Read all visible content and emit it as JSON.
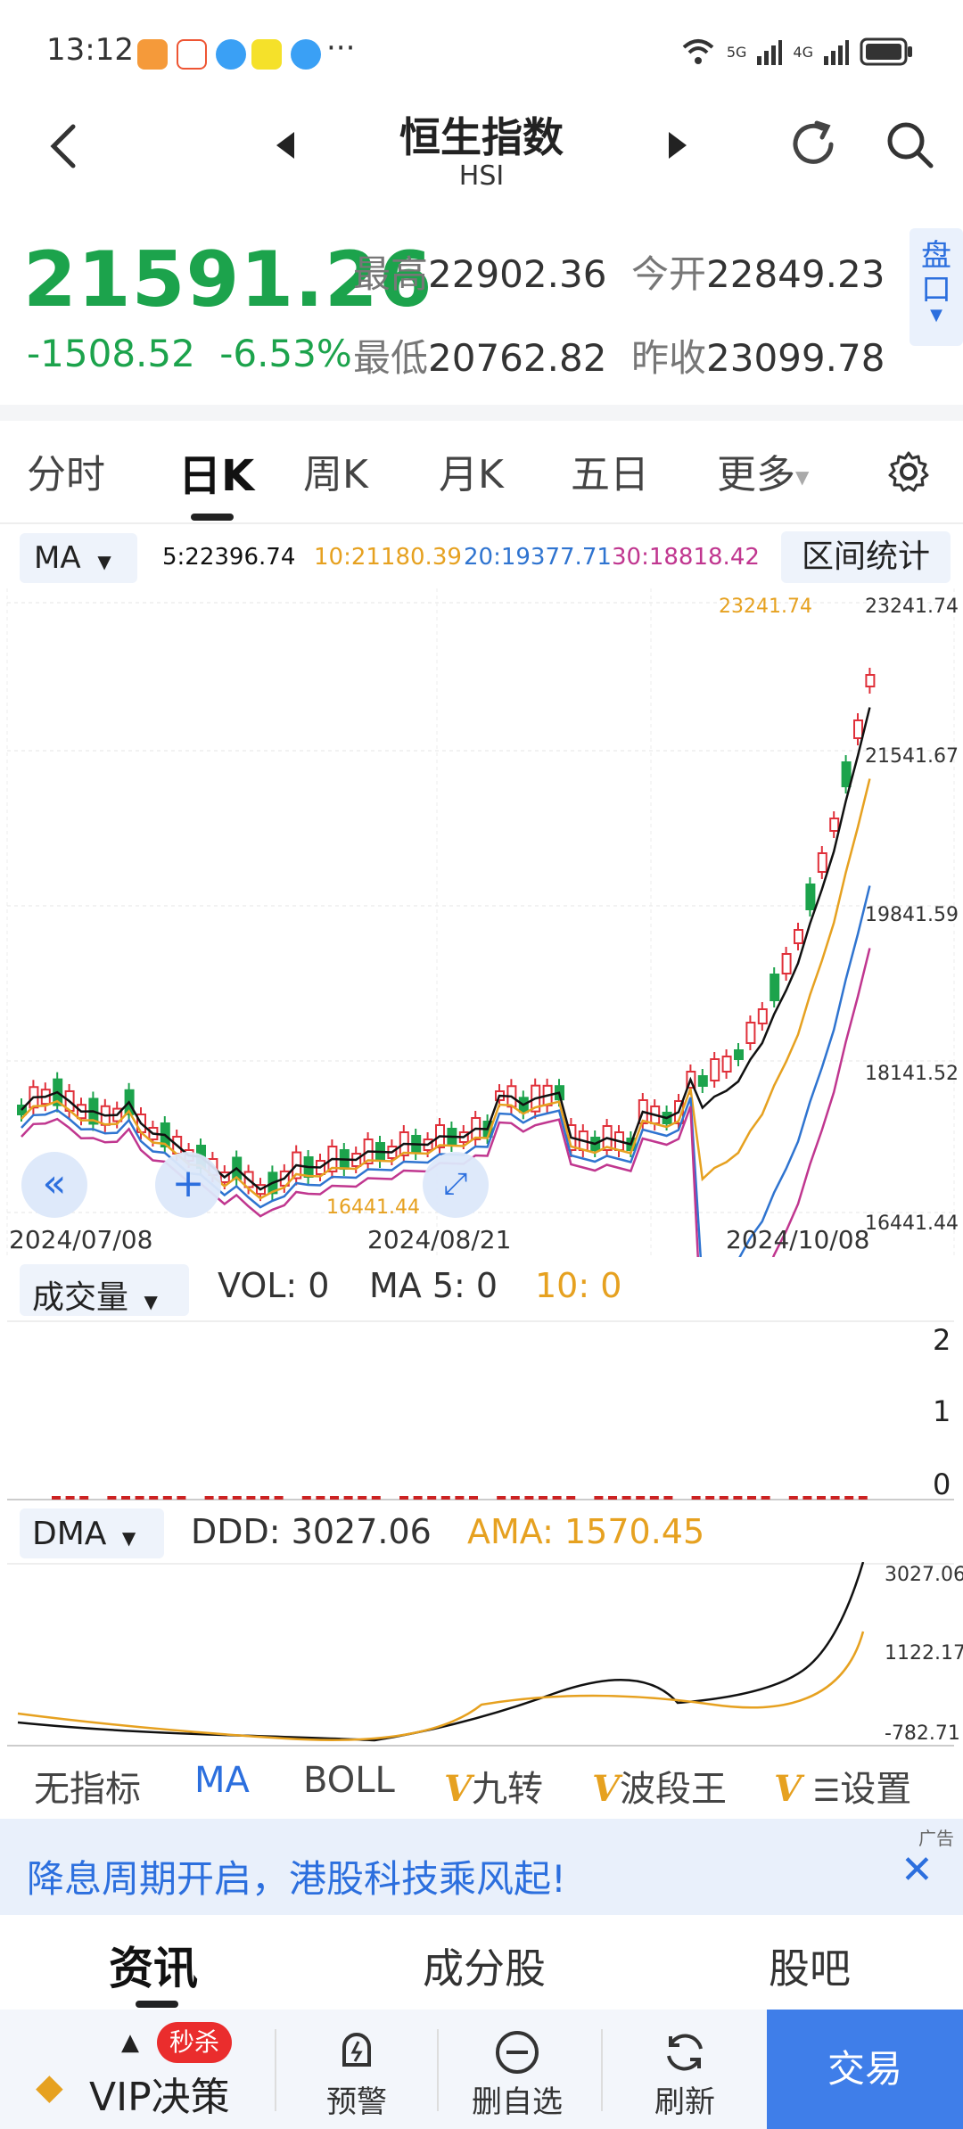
{
  "status": {
    "time": "13:12",
    "dots": "···",
    "net1": "5G",
    "net2": "4G"
  },
  "header": {
    "title": "恒生指数",
    "subtitle": "HSI"
  },
  "quote": {
    "price": "21591.26",
    "change": "-1508.52",
    "change_pct": "-6.53%",
    "high_label": "最高",
    "high": "22902.36",
    "open_label": "今开",
    "open": "22849.23",
    "low_label": "最低",
    "low": "20762.82",
    "prev_close_label": "昨收",
    "prev_close": "23099.78",
    "pankou": "盘口"
  },
  "tabs": [
    {
      "label": "分时"
    },
    {
      "label": "日K"
    },
    {
      "label": "周K"
    },
    {
      "label": "月K"
    },
    {
      "label": "五日"
    },
    {
      "label": "更多"
    }
  ],
  "ma_bar": {
    "select_label": "MA",
    "ma5": "5:22396.74",
    "ma10": "10:21180.39",
    "ma20": "20:19377.71",
    "ma30": "30:18818.42",
    "range_button": "区间统计"
  },
  "kline": {
    "y_labels": [
      "23241.74",
      "21541.67",
      "19841.59",
      "18141.52",
      "16441.44"
    ],
    "high_marker": "23241.74",
    "low_marker": "16441.44",
    "dates": [
      "2024/07/08",
      "2024/08/21",
      "2024/10/08"
    ]
  },
  "volume": {
    "select_label": "成交量",
    "vol_label": "VOL: 0",
    "ma5_label": "MA 5: 0",
    "ma10_label": "10: 0",
    "y_labels": [
      "2",
      "1",
      "0"
    ]
  },
  "dma": {
    "select_label": "DMA",
    "ddd_label": "DDD: 3027.06",
    "ama_label": "AMA: 1570.45",
    "y_labels": [
      "3027.06",
      "1122.17",
      "-782.71"
    ]
  },
  "indicators": {
    "none": "无指标",
    "ma": "MA",
    "boll": "BOLL",
    "jiuzhuan": "九转",
    "boduanwang": "波段王",
    "settings": "设置",
    "v_mark": "V"
  },
  "ad": {
    "text": "降息周期开启，港股科技乘风起!",
    "tag": "广告"
  },
  "sub_tabs": [
    {
      "label": "资讯"
    },
    {
      "label": "成分股"
    },
    {
      "label": "股吧"
    }
  ],
  "bottom": {
    "vip": "VIP决策",
    "miaosha": "秒杀",
    "alert": "预警",
    "remove": "删自选",
    "refresh": "刷新",
    "trade": "交易"
  },
  "colors": {
    "green": "#1ca34c",
    "red": "#e0303a",
    "ma5": "#111111",
    "ma10": "#e6a120",
    "ma20": "#2f74d0",
    "ma30": "#c0368f",
    "accent": "#2c6fde"
  },
  "chart_data": {
    "type": "candlestick",
    "series": [
      {
        "name": "MA5",
        "value": 22396.74
      },
      {
        "name": "MA10",
        "value": 21180.39
      },
      {
        "name": "MA20",
        "value": 19377.71
      },
      {
        "name": "MA30",
        "value": 18818.42
      }
    ],
    "ylim": [
      16441.44,
      23241.74
    ]
  }
}
